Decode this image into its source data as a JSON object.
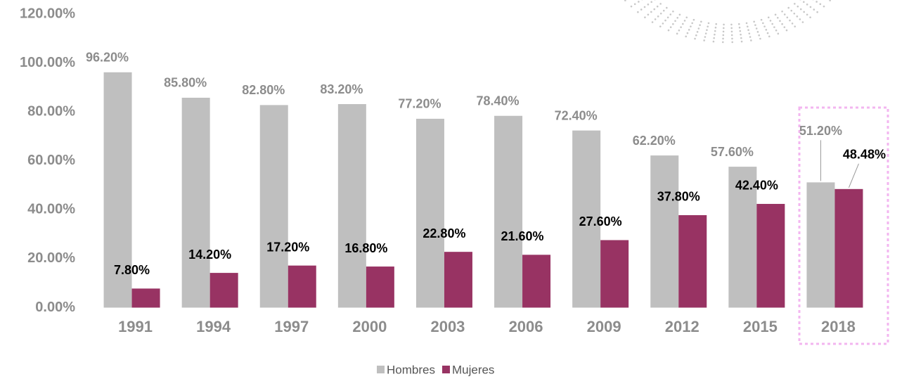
{
  "chart_data": {
    "type": "bar",
    "categories": [
      "1991",
      "1994",
      "1997",
      "2000",
      "2003",
      "2006",
      "2009",
      "2012",
      "2015",
      "2018"
    ],
    "series": [
      {
        "name": "Hombres",
        "color": "#bfbfbf",
        "values": [
          96.2,
          85.8,
          82.8,
          83.2,
          77.2,
          78.4,
          72.4,
          62.2,
          57.6,
          51.2
        ],
        "value_labels": [
          "96.20%",
          "85.80%",
          "82.80%",
          "83.20%",
          "77.20%",
          "78.40%",
          "72.40%",
          "62.20%",
          "57.60%",
          "51.20%"
        ]
      },
      {
        "name": "Mujeres",
        "color": "#983363",
        "values": [
          7.8,
          14.2,
          17.2,
          16.8,
          22.8,
          21.6,
          27.6,
          37.8,
          42.4,
          48.48
        ],
        "value_labels": [
          "7.80%",
          "14.20%",
          "17.20%",
          "16.80%",
          "22.80%",
          "21.60%",
          "27.60%",
          "37.80%",
          "42.40%",
          "48.48%"
        ]
      }
    ],
    "ylim": [
      0,
      120
    ],
    "yticks": [
      {
        "value": 0,
        "label": "0.00%"
      },
      {
        "value": 20,
        "label": "20.00%"
      },
      {
        "value": 40,
        "label": "40.00%"
      },
      {
        "value": 60,
        "label": "60.00%"
      },
      {
        "value": 80,
        "label": "80.00%"
      },
      {
        "value": 100,
        "label": "100.00%"
      },
      {
        "value": 120,
        "label": "120.00%"
      }
    ],
    "grid": false,
    "legend": "bottom"
  }
}
